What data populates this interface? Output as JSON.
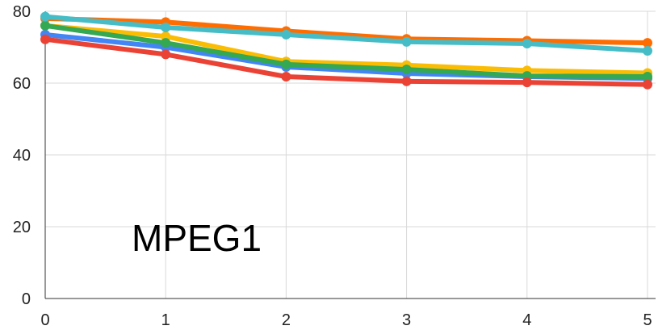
{
  "chart_data": {
    "type": "line",
    "title": "",
    "xlabel": "",
    "ylabel": "",
    "annotation": "MPEG1",
    "x": [
      0,
      1,
      2,
      3,
      4,
      5
    ],
    "x_tick_labels": [
      "0",
      "1",
      "2",
      "3",
      "4",
      "5"
    ],
    "y_tick_labels": [
      "0",
      "20",
      "40",
      "60",
      "80"
    ],
    "y_ticks": [
      0,
      20,
      40,
      60,
      80
    ],
    "xlim": [
      0,
      5
    ],
    "ylim": [
      0,
      80
    ],
    "grid": true,
    "legend": "none",
    "series": [
      {
        "color": "#ff6d01",
        "values": [
          78,
          77,
          74.5,
          72.3,
          71.8,
          71.2
        ]
      },
      {
        "color": "#fbbc04",
        "values": [
          76,
          73,
          66,
          65,
          63.5,
          62.8
        ]
      },
      {
        "color": "#4285f4",
        "values": [
          73.5,
          70,
          64.5,
          62.7,
          61.8,
          61.3
        ]
      },
      {
        "color": "#34a853",
        "values": [
          76,
          71.2,
          65.2,
          63.8,
          62,
          61.8
        ]
      },
      {
        "color": "#ea4335",
        "values": [
          72.2,
          68,
          61.8,
          60.5,
          60.2,
          59.6
        ]
      },
      {
        "color": "#46bdc6",
        "values": [
          78.5,
          75.5,
          73.5,
          71.5,
          71,
          69
        ]
      }
    ]
  }
}
